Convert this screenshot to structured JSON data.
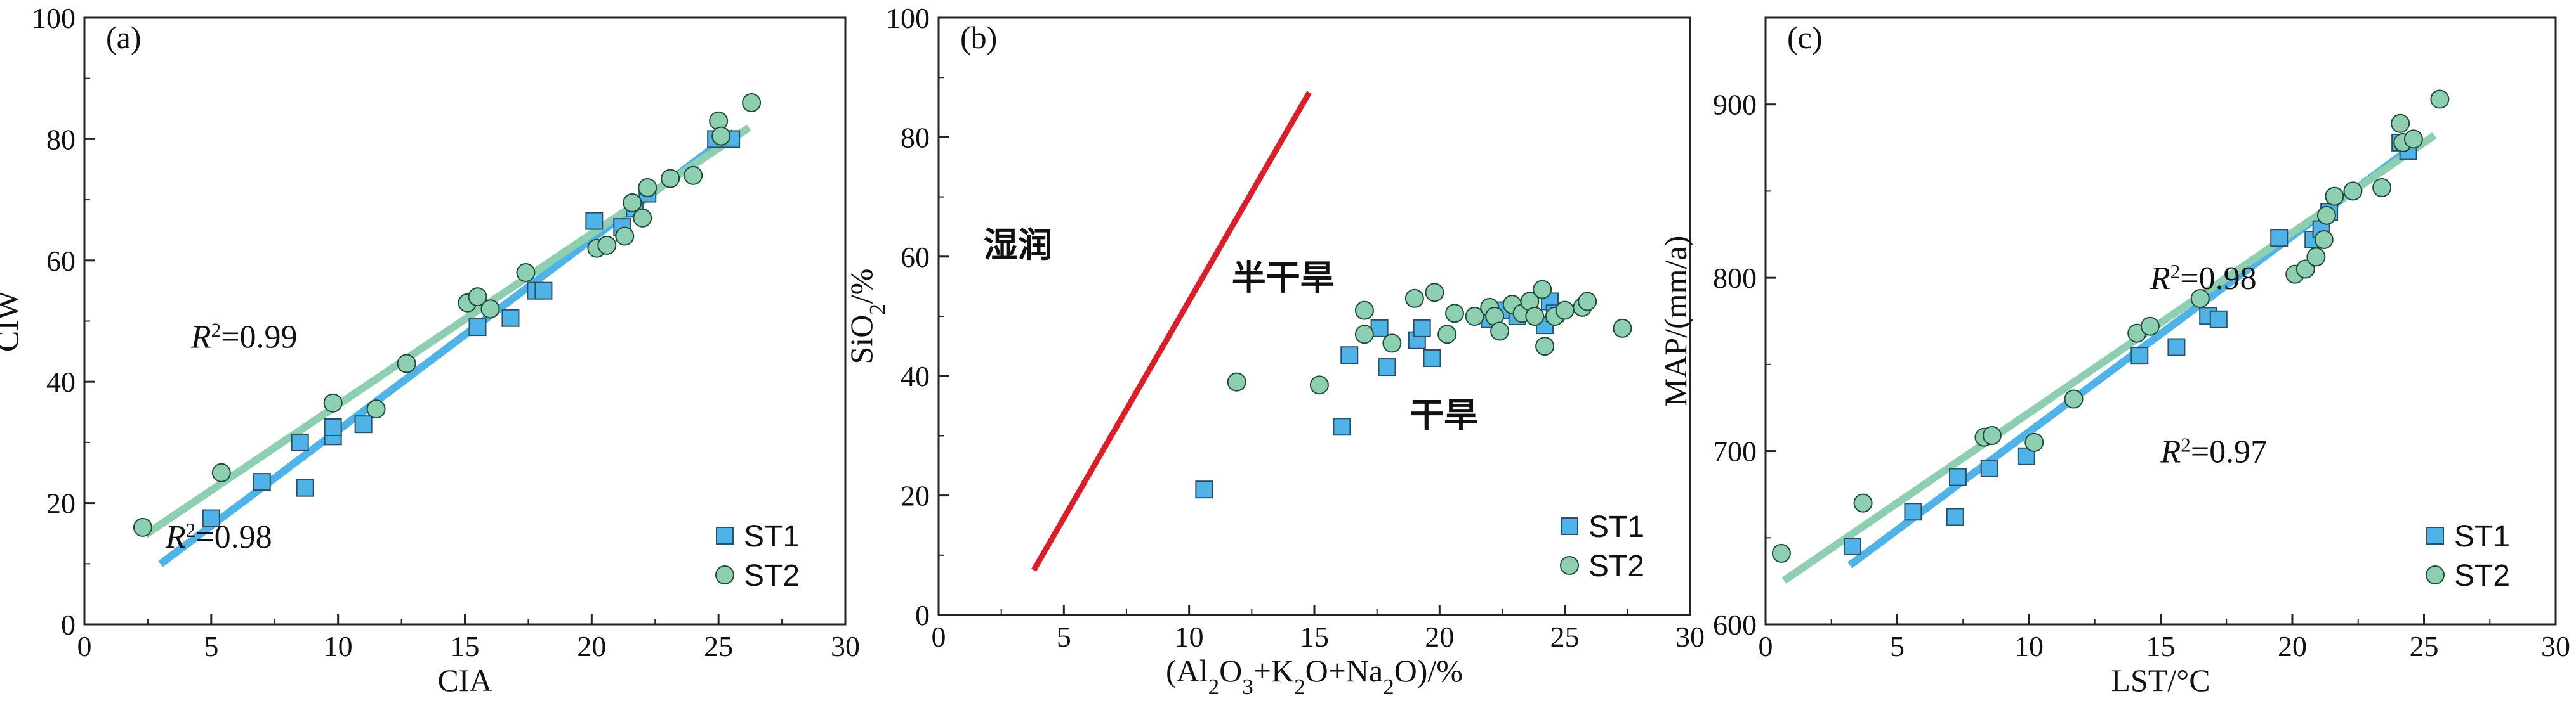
{
  "chart_data": [
    {
      "type": "scatter",
      "panel_label": "(a)",
      "xlabel": "CIA",
      "ylabel": "CIW",
      "xlim": [
        0,
        30
      ],
      "ylim": [
        0,
        100
      ],
      "xticks": [
        0,
        5,
        10,
        15,
        20,
        25,
        30
      ],
      "yticks": [
        0,
        20,
        40,
        60,
        80,
        100
      ],
      "legend_position": "bottom-right",
      "series": [
        {
          "name": "ST1",
          "marker": "square",
          "color": "#4fb3e8",
          "points": [
            [
              5.0,
              17.5
            ],
            [
              7.0,
              23.5
            ],
            [
              8.5,
              30.0
            ],
            [
              8.7,
              22.5
            ],
            [
              9.8,
              31.0
            ],
            [
              9.8,
              32.5
            ],
            [
              11.0,
              33.0
            ],
            [
              15.5,
              49.0
            ],
            [
              16.8,
              50.5
            ],
            [
              17.8,
              55.0
            ],
            [
              18.1,
              55.0
            ],
            [
              20.1,
              66.5
            ],
            [
              21.2,
              65.5
            ],
            [
              21.7,
              68.5
            ],
            [
              22.2,
              71.0
            ],
            [
              24.9,
              80.0
            ],
            [
              25.5,
              80.0
            ]
          ]
        },
        {
          "name": "ST2",
          "marker": "circle",
          "color": "#8dcfb0",
          "points": [
            [
              2.3,
              16.0
            ],
            [
              5.4,
              25.0
            ],
            [
              9.8,
              36.5
            ],
            [
              11.5,
              35.5
            ],
            [
              12.7,
              43.0
            ],
            [
              15.1,
              53.0
            ],
            [
              15.5,
              54.0
            ],
            [
              16.0,
              52.0
            ],
            [
              17.4,
              58.0
            ],
            [
              20.2,
              62.0
            ],
            [
              20.6,
              62.5
            ],
            [
              21.3,
              64.0
            ],
            [
              21.6,
              69.5
            ],
            [
              22.0,
              67.0
            ],
            [
              22.2,
              72.0
            ],
            [
              23.1,
              73.5
            ],
            [
              24.0,
              74.0
            ],
            [
              25.0,
              83.0
            ],
            [
              25.1,
              80.5
            ],
            [
              26.3,
              86.0
            ]
          ]
        }
      ],
      "fits": [
        {
          "series": "ST1",
          "r2_label": "R²=0.98",
          "x_range": [
            3.0,
            25.6
          ],
          "slope": 3.15,
          "intercept": 0.5
        },
        {
          "series": "ST2",
          "r2_label": "R²=0.99",
          "x_range": [
            2.4,
            26.2
          ],
          "slope": 2.82,
          "intercept": 8.0
        }
      ]
    },
    {
      "type": "scatter",
      "panel_label": "(b)",
      "xlabel": "(Al2O3+K2O+Na2O)/%",
      "ylabel": "SiO2/%",
      "xlim": [
        0,
        30
      ],
      "ylim": [
        0,
        100
      ],
      "xticks": [
        0,
        5,
        10,
        15,
        20,
        25,
        30
      ],
      "yticks": [
        0,
        20,
        40,
        60,
        80,
        100
      ],
      "legend_position": "bottom-right",
      "zone_labels": [
        "湿润",
        "半干旱",
        "干旱"
      ],
      "boundary_line": {
        "color": "#d9202a",
        "from": [
          3.8,
          7.5
        ],
        "to": [
          14.8,
          87.5
        ]
      },
      "series": [
        {
          "name": "ST1",
          "marker": "square",
          "color": "#4fb3e8",
          "points": [
            [
              10.6,
              21.0
            ],
            [
              16.1,
              31.5
            ],
            [
              16.4,
              43.5
            ],
            [
              17.6,
              48.0
            ],
            [
              17.9,
              41.5
            ],
            [
              19.1,
              46.0
            ],
            [
              19.3,
              48.0
            ],
            [
              19.7,
              43.0
            ],
            [
              22.0,
              49.5
            ],
            [
              22.5,
              51.0
            ],
            [
              23.1,
              50.0
            ],
            [
              24.2,
              48.5
            ],
            [
              24.4,
              52.5
            ],
            [
              24.6,
              50.5
            ]
          ]
        },
        {
          "name": "ST2",
          "marker": "circle",
          "color": "#8dcfb0",
          "points": [
            [
              11.9,
              39.0
            ],
            [
              15.2,
              38.5
            ],
            [
              17.0,
              51.0
            ],
            [
              17.0,
              47.0
            ],
            [
              18.1,
              45.5
            ],
            [
              19.0,
              53.0
            ],
            [
              19.8,
              54.0
            ],
            [
              20.3,
              47.0
            ],
            [
              20.6,
              50.5
            ],
            [
              21.4,
              50.0
            ],
            [
              22.0,
              51.5
            ],
            [
              22.2,
              50.0
            ],
            [
              22.4,
              47.5
            ],
            [
              22.9,
              52.0
            ],
            [
              23.3,
              50.5
            ],
            [
              23.6,
              52.5
            ],
            [
              23.8,
              50.0
            ],
            [
              24.1,
              54.5
            ],
            [
              24.2,
              45.0
            ],
            [
              24.6,
              50.0
            ],
            [
              25.0,
              51.0
            ],
            [
              25.7,
              51.5
            ],
            [
              25.9,
              52.5
            ],
            [
              27.3,
              48.0
            ]
          ]
        }
      ]
    },
    {
      "type": "scatter",
      "panel_label": "(c)",
      "xlabel": "LST/°C",
      "ylabel": "MAP/(mm/a)",
      "xlim": [
        0,
        30
      ],
      "ylim": [
        600,
        950
      ],
      "xticks": [
        0,
        5,
        10,
        15,
        20,
        25,
        30
      ],
      "yticks": [
        600,
        700,
        800,
        900
      ],
      "legend_position": "bottom-right",
      "series": [
        {
          "name": "ST1",
          "marker": "square",
          "color": "#4fb3e8",
          "points": [
            [
              3.3,
              645
            ],
            [
              5.6,
              665
            ],
            [
              7.2,
              662
            ],
            [
              7.3,
              685
            ],
            [
              8.5,
              690
            ],
            [
              9.9,
              697
            ],
            [
              14.2,
              755
            ],
            [
              15.6,
              760
            ],
            [
              16.8,
              778
            ],
            [
              17.2,
              776
            ],
            [
              19.5,
              823
            ],
            [
              20.8,
              822
            ],
            [
              21.1,
              828
            ],
            [
              21.4,
              838
            ],
            [
              24.1,
              878
            ],
            [
              24.4,
              873
            ]
          ]
        },
        {
          "name": "ST2",
          "marker": "circle",
          "color": "#8dcfb0",
          "points": [
            [
              0.6,
              641
            ],
            [
              3.7,
              670
            ],
            [
              8.3,
              708
            ],
            [
              8.6,
              709
            ],
            [
              10.2,
              705
            ],
            [
              11.7,
              730
            ],
            [
              14.1,
              768
            ],
            [
              14.6,
              772
            ],
            [
              16.5,
              788
            ],
            [
              20.1,
              802
            ],
            [
              20.5,
              805
            ],
            [
              20.9,
              812
            ],
            [
              21.2,
              822
            ],
            [
              21.3,
              836
            ],
            [
              21.6,
              847
            ],
            [
              22.3,
              850
            ],
            [
              23.4,
              852
            ],
            [
              24.1,
              889
            ],
            [
              24.2,
              878
            ],
            [
              24.6,
              880
            ],
            [
              25.6,
              903
            ]
          ]
        }
      ],
      "fits": [
        {
          "series": "ST1",
          "r2_label": "R²=0.97",
          "x_range": [
            3.2,
            24.6
          ],
          "slope": 11.3,
          "intercept": 598.0
        },
        {
          "series": "ST2",
          "r2_label": "R²=0.98",
          "x_range": [
            0.7,
            25.4
          ],
          "slope": 10.4,
          "intercept": 618.0
        }
      ]
    }
  ]
}
